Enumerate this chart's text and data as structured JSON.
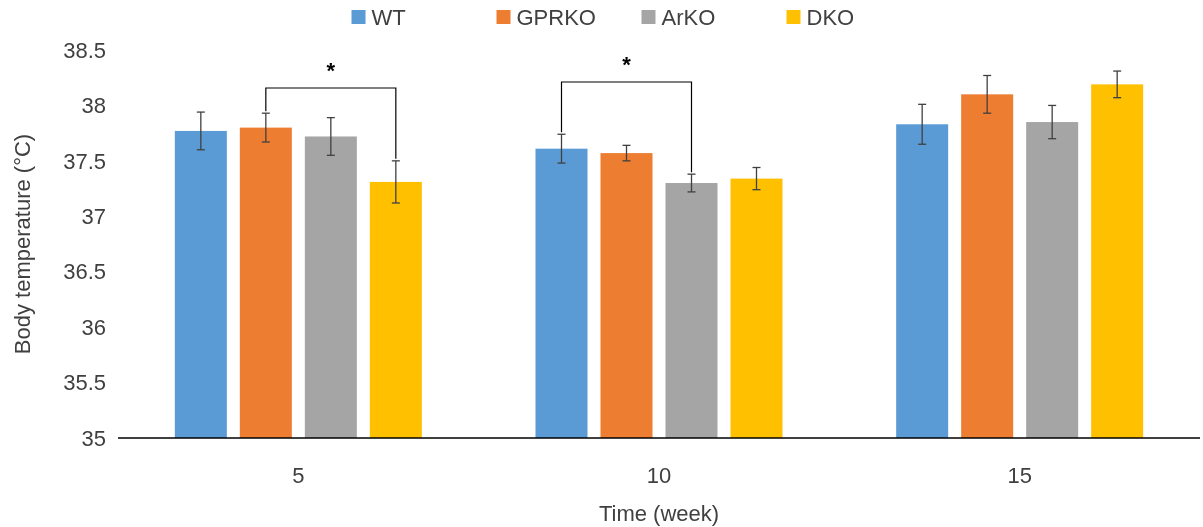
{
  "chart_data": {
    "type": "bar",
    "xlabel": "Time (week)",
    "ylabel": "Body temperature (°C)",
    "categories": [
      "5",
      "10",
      "15"
    ],
    "series": [
      {
        "name": "WT",
        "color": "#5b9bd5",
        "values": [
          37.77,
          37.61,
          37.83
        ],
        "errors": [
          0.17,
          0.13,
          0.18
        ]
      },
      {
        "name": "GPRKO",
        "color": "#ed7d31",
        "values": [
          37.8,
          37.57,
          38.1
        ],
        "errors": [
          0.13,
          0.07,
          0.17
        ]
      },
      {
        "name": "ArKO",
        "color": "#a5a5a5",
        "values": [
          37.72,
          37.3,
          37.85
        ],
        "errors": [
          0.17,
          0.08,
          0.15
        ]
      },
      {
        "name": "DKO",
        "color": "#ffc000",
        "values": [
          37.31,
          37.34,
          38.19
        ],
        "errors": [
          0.19,
          0.1,
          0.12
        ]
      }
    ],
    "ylim": [
      35,
      38.5
    ],
    "yticks": [
      35,
      35.5,
      36,
      36.5,
      37,
      37.5,
      38,
      38.5
    ],
    "grid": false,
    "legend": "top",
    "annotations": [
      "*",
      "*"
    ]
  }
}
